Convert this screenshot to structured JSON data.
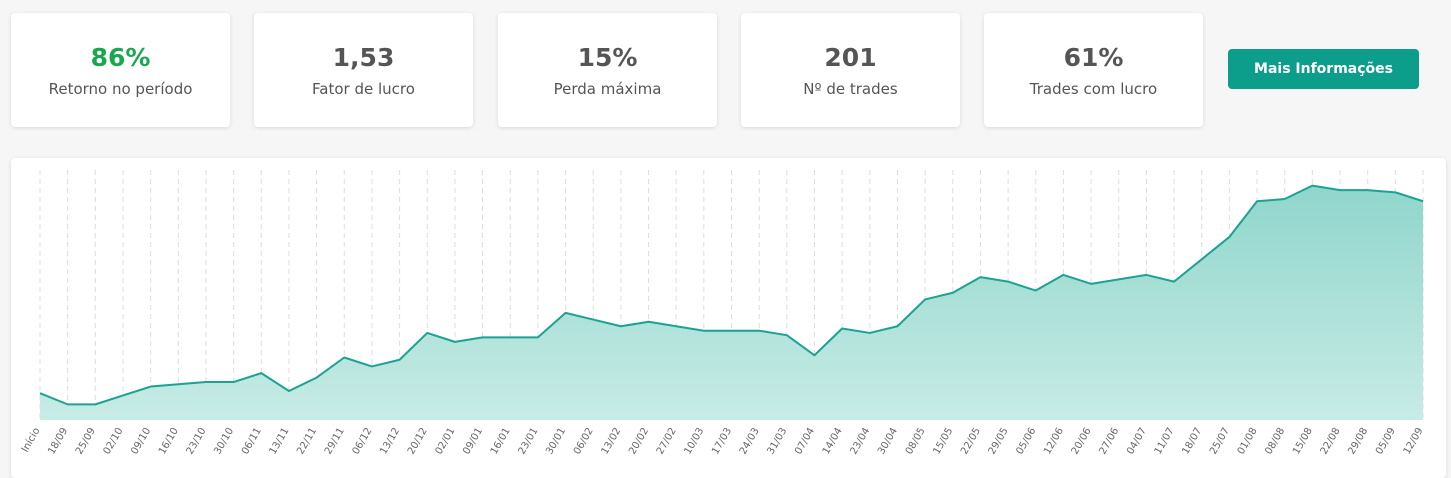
{
  "stats": [
    {
      "value": "86%",
      "label": "Retorno no período"
    },
    {
      "value": "1,53",
      "label": "Fator de lucro"
    },
    {
      "value": "15%",
      "label": "Perda máxima"
    },
    {
      "value": "201",
      "label": "Nº de trades"
    },
    {
      "value": "61%",
      "label": "Trades com lucro"
    }
  ],
  "button": "Mais Informações",
  "chart_data": {
    "type": "area",
    "color": "#1aa391",
    "grid": true,
    "categories": [
      "Início",
      "18/09",
      "25/09",
      "02/10",
      "09/10",
      "16/10",
      "23/10",
      "30/10",
      "06/11",
      "13/11",
      "22/11",
      "29/11",
      "06/12",
      "13/12",
      "20/12",
      "02/01",
      "09/01",
      "16/01",
      "23/01",
      "30/01",
      "06/02",
      "13/02",
      "20/02",
      "27/02",
      "10/03",
      "17/03",
      "24/03",
      "31/03",
      "07/04",
      "14/04",
      "23/04",
      "30/04",
      "08/05",
      "15/05",
      "22/05",
      "29/05",
      "05/06",
      "12/06",
      "20/06",
      "27/06",
      "04/07",
      "11/07",
      "18/07",
      "25/07",
      "01/08",
      "08/08",
      "15/08",
      "22/08",
      "29/08",
      "05/09",
      "12/09"
    ],
    "values": [
      0,
      -5,
      -5,
      -1,
      3,
      4,
      5,
      5,
      9,
      1,
      7,
      16,
      12,
      15,
      27,
      23,
      25,
      25,
      25,
      36,
      33,
      30,
      32,
      30,
      28,
      28,
      28,
      26,
      17,
      29,
      27,
      30,
      42,
      45,
      52,
      50,
      46,
      53,
      49,
      51,
      53,
      50,
      60,
      70,
      86,
      87,
      93,
      91,
      91,
      90,
      86
    ],
    "ylim": [
      -12,
      100
    ]
  }
}
